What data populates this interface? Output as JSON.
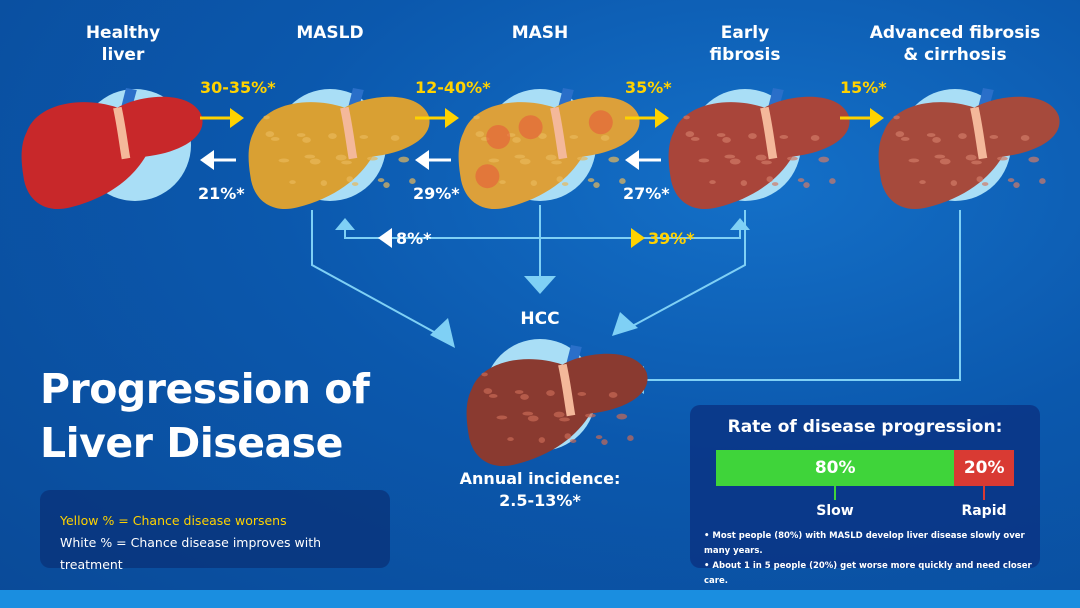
{
  "title": "Progression of\nLiver Disease",
  "stages": [
    {
      "label": "Healthy\nliver",
      "color": "#c8282a"
    },
    {
      "label": "MASLD",
      "color": "#d9a033"
    },
    {
      "label": "MASH",
      "color": "#dca03a"
    },
    {
      "label": "Early\nfibrosis",
      "color": "#a9453a"
    },
    {
      "label": "Advanced fibrosis\n& cirrhosis",
      "color": "#a64a3c"
    }
  ],
  "worsen": [
    "30-35%*",
    "12-40%*",
    "35%*",
    "15%*"
  ],
  "improve": [
    "21%*",
    "29%*",
    "27%*"
  ],
  "bypass": {
    "improve": "8%*",
    "worsen": "39%*"
  },
  "hcc": {
    "label": "HCC",
    "incidence_label": "Annual incidence:",
    "incidence_value": "2.5-13%*",
    "color": "#8a3a30"
  },
  "legend": {
    "yellow": "Yellow % = Chance disease worsens",
    "white": "White % = Chance disease improves with treatment"
  },
  "rate": {
    "title": "Rate of disease progression:",
    "slow": {
      "value": 80,
      "label": "80%",
      "name": "Slow",
      "color": "#3fd43a"
    },
    "rapid": {
      "value": 20,
      "label": "20%",
      "name": "Rapid",
      "color": "#d93a33"
    },
    "notes": [
      "Most people (80%) with MASLD develop liver disease slowly over many years.",
      "About 1 in 5 people (20%) get worse more quickly and need closer care."
    ]
  },
  "colors": {
    "yellow": "#ffd200",
    "line": "#7fd0f5",
    "circle": "#a9def6"
  }
}
